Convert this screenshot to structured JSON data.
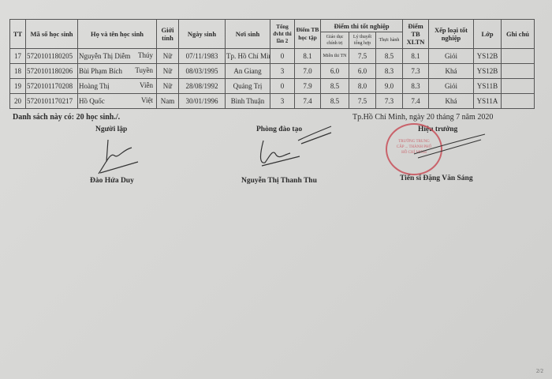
{
  "table": {
    "headers": {
      "tt": "TT",
      "student_id": "Mã số học sinh",
      "full_name": "Họ và tên học sinh",
      "gender": "Giới tính",
      "dob": "Ngày sinh",
      "birthplace": "Nơi sinh",
      "retake_credits": "Tổng đvht thi lần 2",
      "gpa": "Điểm TB học tập",
      "exam_group": "Điểm thi tốt nghiệp",
      "exam_politics": "Giáo dục chính trị",
      "exam_theory": "Lý thuyết tổng hợp",
      "exam_practice": "Thực hành",
      "xltn": "Điểm TB XLTN",
      "rank": "Xếp loại tốt nghiệp",
      "class": "Lớp",
      "note": "Ghi chú"
    },
    "rows": [
      {
        "tt": "17",
        "id": "5720101180205",
        "surname": "Nguyễn Thị Diễm",
        "given": "Thúy",
        "gender": "Nữ",
        "dob": "07/11/1983",
        "birthplace": "Tp. Hồ Chí Minh",
        "retake": "0",
        "gpa": "8.1",
        "politics": "Miễn thi TN",
        "theory": "7.5",
        "practice": "8.5",
        "xltn": "8.1",
        "rank": "Giỏi",
        "class": "YS12B",
        "note": ""
      },
      {
        "tt": "18",
        "id": "5720101180206",
        "surname": "Bùi Phạm Bích",
        "given": "Tuyền",
        "gender": "Nữ",
        "dob": "08/03/1995",
        "birthplace": "An Giang",
        "retake": "3",
        "gpa": "7.0",
        "politics": "6.0",
        "theory": "6.0",
        "practice": "8.3",
        "xltn": "7.3",
        "rank": "Khá",
        "class": "YS12B",
        "note": ""
      },
      {
        "tt": "19",
        "id": "5720101170208",
        "surname": "Hoàng Thị",
        "given": "Viễn",
        "gender": "Nữ",
        "dob": "28/08/1992",
        "birthplace": "Quảng Trị",
        "retake": "0",
        "gpa": "7.9",
        "politics": "8.5",
        "theory": "8.0",
        "practice": "9.0",
        "xltn": "8.3",
        "rank": "Giỏi",
        "class": "YS11B",
        "note": ""
      },
      {
        "tt": "20",
        "id": "5720101170217",
        "surname": "Hồ Quốc",
        "given": "Việt",
        "gender": "Nam",
        "dob": "30/01/1996",
        "birthplace": "Bình Thuận",
        "retake": "3",
        "gpa": "7.4",
        "politics": "8.5",
        "theory": "7.5",
        "practice": "7.3",
        "xltn": "7.4",
        "rank": "Khá",
        "class": "YS11A",
        "note": ""
      }
    ]
  },
  "summary": "Danh sách này có: 20 học sinh./.",
  "place_date": "Tp.Hồ Chí Minh, ngày 20 tháng 7 năm 2020",
  "signatories": [
    {
      "role": "Người lập",
      "name": "Đào Hứa Duy"
    },
    {
      "role": "Phòng đào tạo",
      "name": "Nguyễn Thị Thanh Thu"
    },
    {
      "role": "Hiệu trưởng",
      "name": "Tiến sĩ Đặng Văn Sáng"
    }
  ],
  "stamp_text": "TRƯỜNG TRUNG CẤP ... THÀNH PHỐ HỒ CHÍ MINH",
  "stamp_color": "#c8505a",
  "page_number": "2/2"
}
